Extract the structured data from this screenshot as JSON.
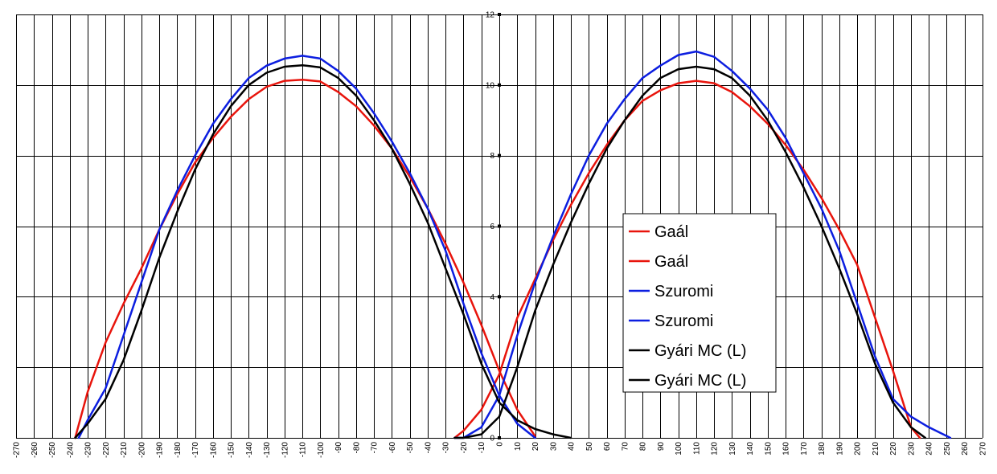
{
  "chart_data": {
    "type": "line",
    "title": "",
    "xlabel": "",
    "ylabel": "",
    "xlim": [
      -270,
      270
    ],
    "ylim": [
      0,
      12
    ],
    "x_ticks": [
      -270,
      -260,
      -250,
      -240,
      -230,
      -220,
      -210,
      -200,
      -190,
      -180,
      -170,
      -160,
      -150,
      -140,
      -130,
      -120,
      -110,
      -100,
      -90,
      -80,
      -70,
      -60,
      -50,
      -40,
      -30,
      -20,
      -10,
      0,
      10,
      20,
      30,
      40,
      50,
      60,
      70,
      80,
      90,
      100,
      110,
      120,
      130,
      140,
      150,
      160,
      170,
      180,
      190,
      200,
      210,
      220,
      230,
      240,
      250,
      260,
      270
    ],
    "y_ticks": [
      0,
      4,
      6,
      8,
      10,
      12
    ],
    "y_gridlines": [
      0,
      2,
      4,
      6,
      8,
      10,
      12
    ],
    "grid": true,
    "legend_position": "center-right",
    "series": [
      {
        "name": "Gaál",
        "color": "#e8140c",
        "points": [
          [
            -237,
            0
          ],
          [
            -230,
            1.3
          ],
          [
            -220,
            2.7
          ],
          [
            -210,
            3.8
          ],
          [
            -200,
            4.8
          ],
          [
            -190,
            5.9
          ],
          [
            -180,
            6.9
          ],
          [
            -170,
            7.8
          ],
          [
            -160,
            8.5
          ],
          [
            -150,
            9.1
          ],
          [
            -140,
            9.6
          ],
          [
            -130,
            9.95
          ],
          [
            -120,
            10.12
          ],
          [
            -110,
            10.15
          ],
          [
            -100,
            10.1
          ],
          [
            -90,
            9.8
          ],
          [
            -80,
            9.4
          ],
          [
            -70,
            8.85
          ],
          [
            -60,
            8.2
          ],
          [
            -50,
            7.4
          ],
          [
            -40,
            6.5
          ],
          [
            -30,
            5.5
          ],
          [
            -20,
            4.4
          ],
          [
            -10,
            3.2
          ],
          [
            0,
            1.9
          ],
          [
            10,
            0.8
          ],
          [
            20,
            0.05
          ]
        ]
      },
      {
        "name": "Gaál",
        "color": "#e8140c",
        "points": [
          [
            -25,
            0
          ],
          [
            -20,
            0.2
          ],
          [
            -10,
            0.8
          ],
          [
            0,
            1.8
          ],
          [
            10,
            3.4
          ],
          [
            20,
            4.5
          ],
          [
            30,
            5.6
          ],
          [
            40,
            6.6
          ],
          [
            50,
            7.5
          ],
          [
            60,
            8.3
          ],
          [
            70,
            9.0
          ],
          [
            80,
            9.55
          ],
          [
            90,
            9.85
          ],
          [
            100,
            10.05
          ],
          [
            110,
            10.12
          ],
          [
            120,
            10.05
          ],
          [
            130,
            9.8
          ],
          [
            140,
            9.4
          ],
          [
            150,
            8.9
          ],
          [
            160,
            8.3
          ],
          [
            170,
            7.6
          ],
          [
            180,
            6.8
          ],
          [
            190,
            5.9
          ],
          [
            200,
            4.9
          ],
          [
            210,
            3.4
          ],
          [
            220,
            1.9
          ],
          [
            230,
            0.3
          ],
          [
            235,
            0
          ]
        ]
      },
      {
        "name": "Szuromi",
        "color": "#0c1ee0",
        "points": [
          [
            -235,
            0
          ],
          [
            -230,
            0.5
          ],
          [
            -220,
            1.4
          ],
          [
            -210,
            2.9
          ],
          [
            -200,
            4.4
          ],
          [
            -190,
            5.9
          ],
          [
            -180,
            7.0
          ],
          [
            -170,
            8.0
          ],
          [
            -160,
            8.9
          ],
          [
            -150,
            9.6
          ],
          [
            -140,
            10.2
          ],
          [
            -130,
            10.55
          ],
          [
            -120,
            10.75
          ],
          [
            -110,
            10.83
          ],
          [
            -100,
            10.75
          ],
          [
            -90,
            10.4
          ],
          [
            -80,
            9.9
          ],
          [
            -70,
            9.2
          ],
          [
            -60,
            8.4
          ],
          [
            -50,
            7.5
          ],
          [
            -40,
            6.5
          ],
          [
            -30,
            5.3
          ],
          [
            -20,
            3.8
          ],
          [
            -10,
            2.4
          ],
          [
            0,
            1.2
          ],
          [
            10,
            0.4
          ],
          [
            20,
            0
          ]
        ]
      },
      {
        "name": "Szuromi",
        "color": "#0c1ee0",
        "points": [
          [
            -25,
            0
          ],
          [
            -20,
            0
          ],
          [
            -10,
            0.3
          ],
          [
            0,
            1.2
          ],
          [
            10,
            2.9
          ],
          [
            20,
            4.4
          ],
          [
            30,
            5.7
          ],
          [
            40,
            6.9
          ],
          [
            50,
            8.0
          ],
          [
            60,
            8.9
          ],
          [
            70,
            9.6
          ],
          [
            80,
            10.2
          ],
          [
            90,
            10.55
          ],
          [
            100,
            10.85
          ],
          [
            110,
            10.95
          ],
          [
            120,
            10.8
          ],
          [
            130,
            10.4
          ],
          [
            140,
            9.9
          ],
          [
            150,
            9.3
          ],
          [
            160,
            8.5
          ],
          [
            170,
            7.5
          ],
          [
            180,
            6.5
          ],
          [
            190,
            5.3
          ],
          [
            200,
            3.8
          ],
          [
            210,
            2.3
          ],
          [
            220,
            1.1
          ],
          [
            230,
            0.6
          ],
          [
            240,
            0.3
          ],
          [
            250,
            0.05
          ],
          [
            252,
            0
          ]
        ]
      },
      {
        "name": "Gyári MC (L)",
        "color": "#000000",
        "points": [
          [
            -237,
            0
          ],
          [
            -230,
            0.4
          ],
          [
            -220,
            1.1
          ],
          [
            -210,
            2.2
          ],
          [
            -200,
            3.6
          ],
          [
            -190,
            5.1
          ],
          [
            -180,
            6.4
          ],
          [
            -170,
            7.6
          ],
          [
            -160,
            8.6
          ],
          [
            -150,
            9.4
          ],
          [
            -140,
            10.0
          ],
          [
            -130,
            10.35
          ],
          [
            -120,
            10.52
          ],
          [
            -110,
            10.56
          ],
          [
            -100,
            10.5
          ],
          [
            -90,
            10.2
          ],
          [
            -80,
            9.7
          ],
          [
            -70,
            9.0
          ],
          [
            -60,
            8.2
          ],
          [
            -50,
            7.2
          ],
          [
            -40,
            6.1
          ],
          [
            -30,
            4.8
          ],
          [
            -20,
            3.5
          ],
          [
            -10,
            2.1
          ],
          [
            0,
            1.0
          ],
          [
            10,
            0.5
          ],
          [
            20,
            0.25
          ],
          [
            30,
            0.1
          ],
          [
            40,
            0
          ]
        ]
      },
      {
        "name": "Gyári MC (L)",
        "color": "#000000",
        "points": [
          [
            -25,
            0
          ],
          [
            -20,
            0
          ],
          [
            -10,
            0.1
          ],
          [
            0,
            0.6
          ],
          [
            10,
            2.0
          ],
          [
            20,
            3.6
          ],
          [
            30,
            4.9
          ],
          [
            40,
            6.1
          ],
          [
            50,
            7.2
          ],
          [
            60,
            8.2
          ],
          [
            70,
            9.0
          ],
          [
            80,
            9.7
          ],
          [
            90,
            10.2
          ],
          [
            100,
            10.45
          ],
          [
            110,
            10.52
          ],
          [
            120,
            10.45
          ],
          [
            130,
            10.2
          ],
          [
            140,
            9.7
          ],
          [
            150,
            9.0
          ],
          [
            160,
            8.1
          ],
          [
            170,
            7.1
          ],
          [
            180,
            6.0
          ],
          [
            190,
            4.8
          ],
          [
            200,
            3.5
          ],
          [
            210,
            2.1
          ],
          [
            220,
            1.0
          ],
          [
            230,
            0.3
          ],
          [
            238,
            0
          ]
        ]
      }
    ],
    "legend": [
      "Gaál",
      "Gaál",
      "Szuromi",
      "Szuromi",
      "Gyári MC (L)",
      "Gyári MC (L)"
    ]
  }
}
